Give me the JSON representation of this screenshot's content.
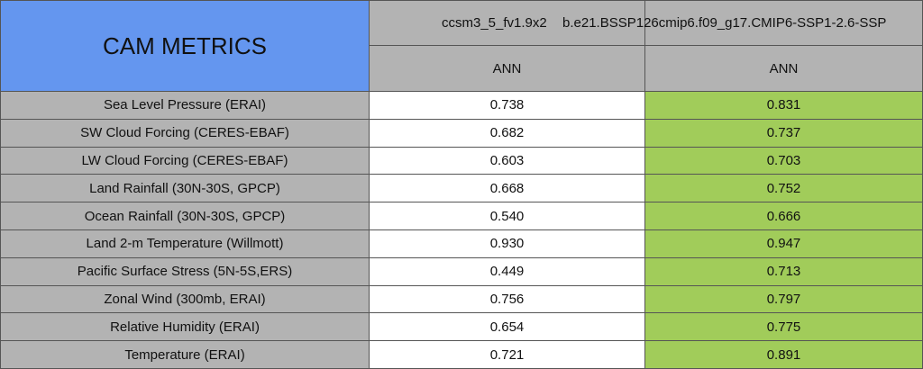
{
  "header": {
    "title": "CAM METRICS",
    "cases": [
      "ccsm3_5_fv1.9x2",
      "b.e21.BSSP126cmip6.f09_g17.CMIP6-SSP1-2.6-SSP"
    ],
    "periods": [
      "ANN",
      "ANN"
    ]
  },
  "table": {
    "rows": [
      [
        "Sea Level Pressure (ERAI)",
        "0.738",
        "0.831"
      ],
      [
        "SW Cloud Forcing (CERES-EBAF)",
        "0.682",
        "0.737"
      ],
      [
        "LW Cloud Forcing (CERES-EBAF)",
        "0.603",
        "0.703"
      ],
      [
        "Land Rainfall (30N-30S, GPCP)",
        "0.668",
        "0.752"
      ],
      [
        "Ocean Rainfall (30N-30S, GPCP)",
        "0.540",
        "0.666"
      ],
      [
        "Land 2-m Temperature (Willmott)",
        "0.930",
        "0.947"
      ],
      [
        "Pacific Surface Stress (5N-5S,ERS)",
        "0.449",
        "0.713"
      ],
      [
        "Zonal Wind (300mb, ERAI)",
        "0.756",
        "0.797"
      ],
      [
        "Relative Humidity (ERAI)",
        "0.654",
        "0.775"
      ],
      [
        "Temperature (ERAI)",
        "0.721",
        "0.891"
      ]
    ]
  }
}
